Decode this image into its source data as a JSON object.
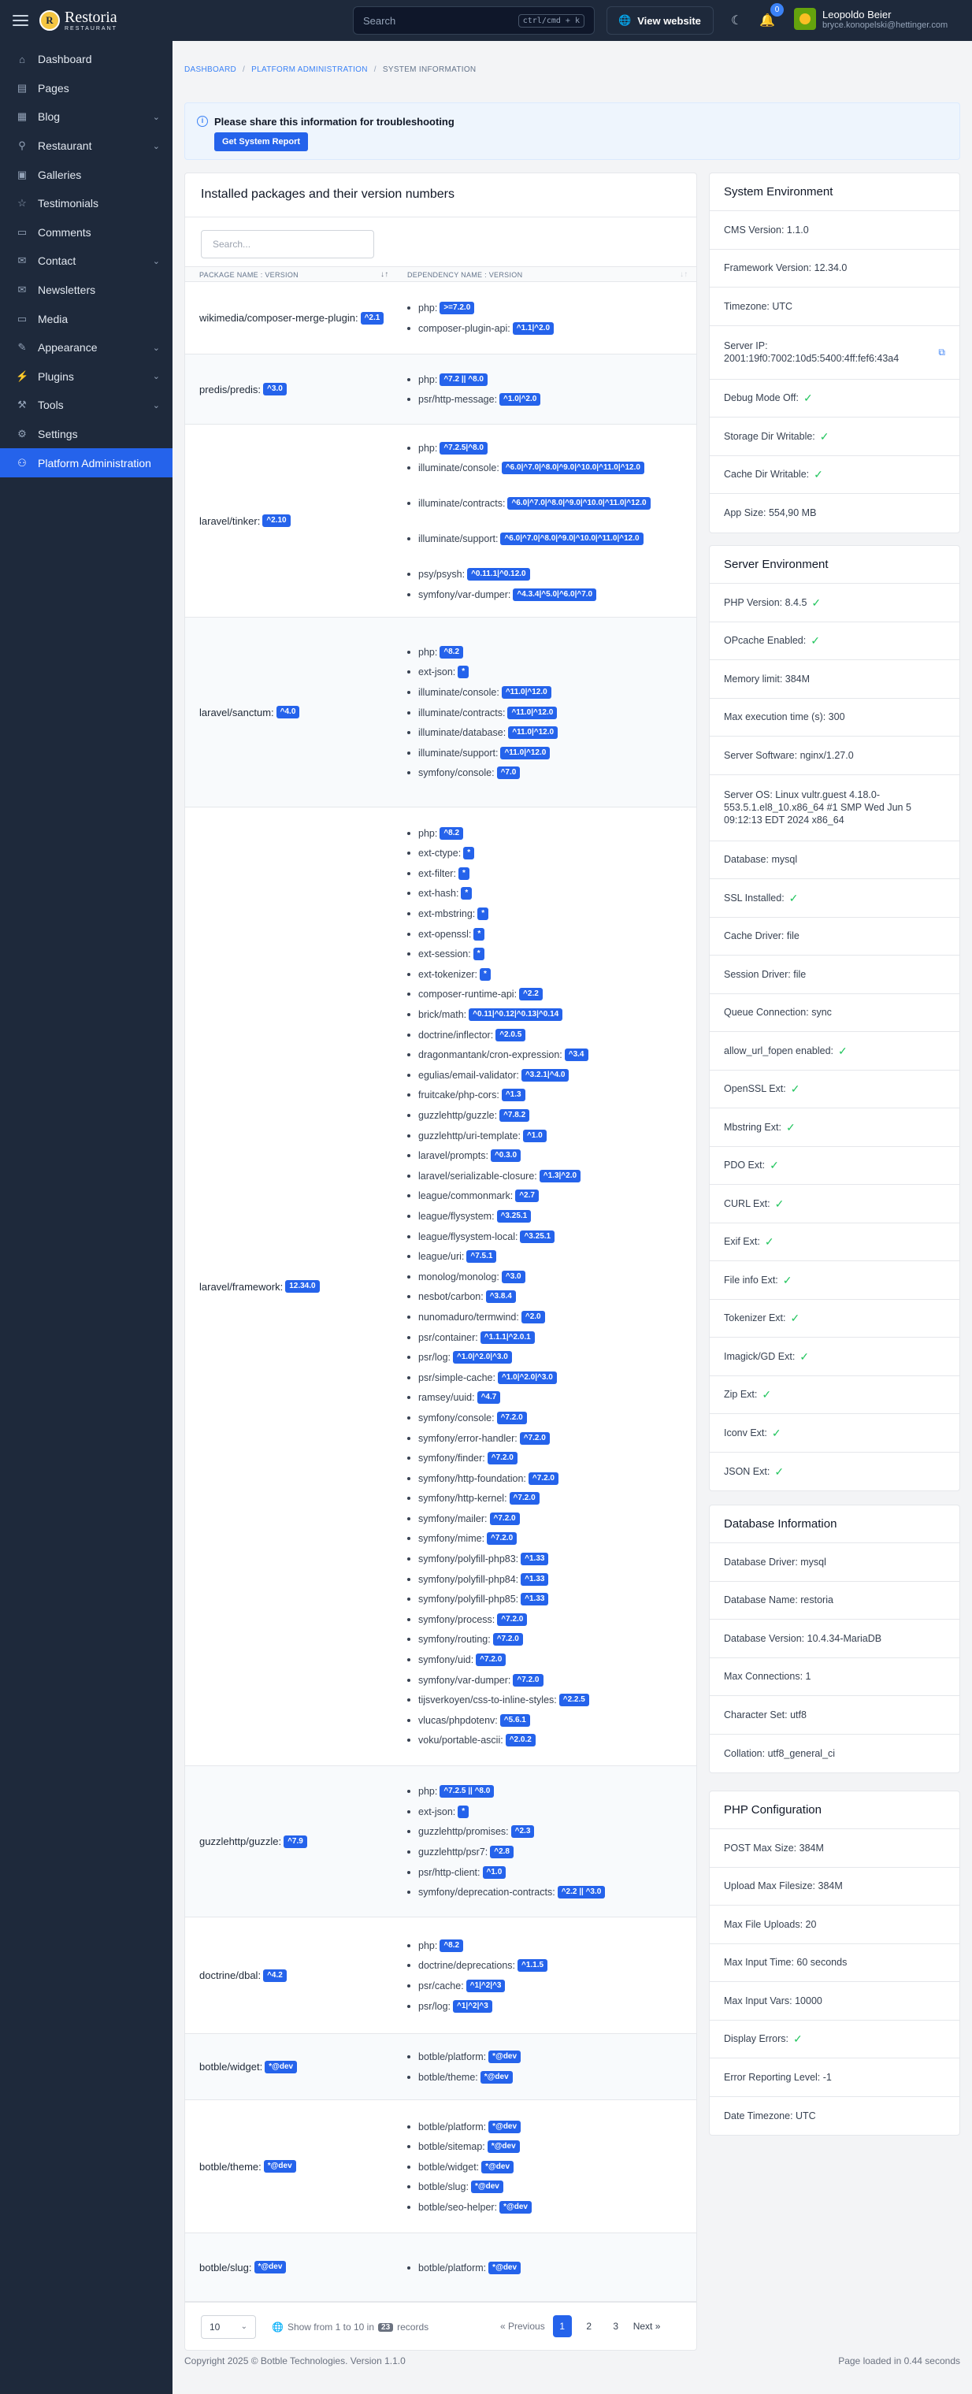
{
  "topbar": {
    "logo_name": "Restoria",
    "logo_sub": "RESTAURANT",
    "search_placeholder": "Search",
    "search_shortcut": "ctrl/cmd + k",
    "view_site": "View website",
    "notifications": "0",
    "user_name": "Leopoldo Beier",
    "user_email": "bryce.konopelski@hettinger.com"
  },
  "sidebar": {
    "items": [
      {
        "label": "Dashboard",
        "icon": "home-icon",
        "chevron": false
      },
      {
        "label": "Pages",
        "icon": "file-icon",
        "chevron": false
      },
      {
        "label": "Blog",
        "icon": "article-icon",
        "chevron": true
      },
      {
        "label": "Restaurant",
        "icon": "tools-kitchen-icon",
        "chevron": true
      },
      {
        "label": "Galleries",
        "icon": "photo-icon",
        "chevron": false
      },
      {
        "label": "Testimonials",
        "icon": "user-star-icon",
        "chevron": false
      },
      {
        "label": "Comments",
        "icon": "message-icon",
        "chevron": false
      },
      {
        "label": "Contact",
        "icon": "mail-icon",
        "chevron": true
      },
      {
        "label": "Newsletters",
        "icon": "mail-opened-icon",
        "chevron": false
      },
      {
        "label": "Media",
        "icon": "folder-icon",
        "chevron": false
      },
      {
        "label": "Appearance",
        "icon": "brush-icon",
        "chevron": true
      },
      {
        "label": "Plugins",
        "icon": "plug-icon",
        "chevron": true
      },
      {
        "label": "Tools",
        "icon": "tool-icon",
        "chevron": true
      },
      {
        "label": "Settings",
        "icon": "settings-icon",
        "chevron": false
      },
      {
        "label": "Platform Administration",
        "icon": "user-shield-icon",
        "chevron": false,
        "active": true
      }
    ]
  },
  "breadcrumb": {
    "items": [
      "DASHBOARD",
      "PLATFORM ADMINISTRATION"
    ],
    "current": "SYSTEM INFORMATION"
  },
  "alert": {
    "text": "Please share this information for troubleshooting",
    "button": "Get System Report"
  },
  "packages": {
    "title": "Installed packages and their version numbers",
    "search_placeholder": "Search...",
    "col1": "PACKAGE NAME : VERSION",
    "col2": "DEPENDENCY NAME : VERSION",
    "rows": [
      {
        "name": "wikimedia/composer-merge-plugin:",
        "version": "^2.1",
        "deps": [
          {
            "n": "php:",
            "v": ">=7.2.0"
          },
          {
            "n": "composer-plugin-api:",
            "v": "^1.1|^2.0"
          }
        ]
      },
      {
        "name": "predis/predis:",
        "version": "^3.0",
        "deps": [
          {
            "n": "php:",
            "v": "^7.2 || ^8.0"
          },
          {
            "n": "psr/http-message:",
            "v": "^1.0|^2.0"
          }
        ]
      },
      {
        "name": "laravel/tinker:",
        "version": "^2.10",
        "deps": [
          {
            "n": "php:",
            "v": "^7.2.5|^8.0"
          },
          {
            "n": "illuminate/console:",
            "v": "^6.0|^7.0|^8.0|^9.0|^10.0|^11.0|^12.0"
          },
          {
            "n": "illuminate/contracts:",
            "v": "^6.0|^7.0|^8.0|^9.0|^10.0|^11.0|^12.0"
          },
          {
            "n": "illuminate/support:",
            "v": "^6.0|^7.0|^8.0|^9.0|^10.0|^11.0|^12.0"
          },
          {
            "n": "psy/psysh:",
            "v": "^0.11.1|^0.12.0"
          },
          {
            "n": "symfony/var-dumper:",
            "v": "^4.3.4|^5.0|^6.0|^7.0"
          }
        ]
      },
      {
        "name": "laravel/sanctum:",
        "version": "^4.0",
        "deps": [
          {
            "n": "php:",
            "v": "^8.2"
          },
          {
            "n": "ext-json:",
            "v": "*"
          },
          {
            "n": "illuminate/console:",
            "v": "^11.0|^12.0"
          },
          {
            "n": "illuminate/contracts:",
            "v": "^11.0|^12.0"
          },
          {
            "n": "illuminate/database:",
            "v": "^11.0|^12.0"
          },
          {
            "n": "illuminate/support:",
            "v": "^11.0|^12.0"
          },
          {
            "n": "symfony/console:",
            "v": "^7.0"
          }
        ]
      },
      {
        "name": "laravel/framework:",
        "version": "12.34.0",
        "deps": [
          {
            "n": "php:",
            "v": "^8.2"
          },
          {
            "n": "ext-ctype:",
            "v": "*"
          },
          {
            "n": "ext-filter:",
            "v": "*"
          },
          {
            "n": "ext-hash:",
            "v": "*"
          },
          {
            "n": "ext-mbstring:",
            "v": "*"
          },
          {
            "n": "ext-openssl:",
            "v": "*"
          },
          {
            "n": "ext-session:",
            "v": "*"
          },
          {
            "n": "ext-tokenizer:",
            "v": "*"
          },
          {
            "n": "composer-runtime-api:",
            "v": "^2.2"
          },
          {
            "n": "brick/math:",
            "v": "^0.11|^0.12|^0.13|^0.14"
          },
          {
            "n": "doctrine/inflector:",
            "v": "^2.0.5"
          },
          {
            "n": "dragonmantank/cron-expression:",
            "v": "^3.4"
          },
          {
            "n": "egulias/email-validator:",
            "v": "^3.2.1|^4.0"
          },
          {
            "n": "fruitcake/php-cors:",
            "v": "^1.3"
          },
          {
            "n": "guzzlehttp/guzzle:",
            "v": "^7.8.2"
          },
          {
            "n": "guzzlehttp/uri-template:",
            "v": "^1.0"
          },
          {
            "n": "laravel/prompts:",
            "v": "^0.3.0"
          },
          {
            "n": "laravel/serializable-closure:",
            "v": "^1.3|^2.0"
          },
          {
            "n": "league/commonmark:",
            "v": "^2.7"
          },
          {
            "n": "league/flysystem:",
            "v": "^3.25.1"
          },
          {
            "n": "league/flysystem-local:",
            "v": "^3.25.1"
          },
          {
            "n": "league/uri:",
            "v": "^7.5.1"
          },
          {
            "n": "monolog/monolog:",
            "v": "^3.0"
          },
          {
            "n": "nesbot/carbon:",
            "v": "^3.8.4"
          },
          {
            "n": "nunomaduro/termwind:",
            "v": "^2.0"
          },
          {
            "n": "psr/container:",
            "v": "^1.1.1|^2.0.1"
          },
          {
            "n": "psr/log:",
            "v": "^1.0|^2.0|^3.0"
          },
          {
            "n": "psr/simple-cache:",
            "v": "^1.0|^2.0|^3.0"
          },
          {
            "n": "ramsey/uuid:",
            "v": "^4.7"
          },
          {
            "n": "symfony/console:",
            "v": "^7.2.0"
          },
          {
            "n": "symfony/error-handler:",
            "v": "^7.2.0"
          },
          {
            "n": "symfony/finder:",
            "v": "^7.2.0"
          },
          {
            "n": "symfony/http-foundation:",
            "v": "^7.2.0"
          },
          {
            "n": "symfony/http-kernel:",
            "v": "^7.2.0"
          },
          {
            "n": "symfony/mailer:",
            "v": "^7.2.0"
          },
          {
            "n": "symfony/mime:",
            "v": "^7.2.0"
          },
          {
            "n": "symfony/polyfill-php83:",
            "v": "^1.33"
          },
          {
            "n": "symfony/polyfill-php84:",
            "v": "^1.33"
          },
          {
            "n": "symfony/polyfill-php85:",
            "v": "^1.33"
          },
          {
            "n": "symfony/process:",
            "v": "^7.2.0"
          },
          {
            "n": "symfony/routing:",
            "v": "^7.2.0"
          },
          {
            "n": "symfony/uid:",
            "v": "^7.2.0"
          },
          {
            "n": "symfony/var-dumper:",
            "v": "^7.2.0"
          },
          {
            "n": "tijsverkoyen/css-to-inline-styles:",
            "v": "^2.2.5"
          },
          {
            "n": "vlucas/phpdotenv:",
            "v": "^5.6.1"
          },
          {
            "n": "voku/portable-ascii:",
            "v": "^2.0.2"
          }
        ]
      },
      {
        "name": "guzzlehttp/guzzle:",
        "version": "^7.9",
        "deps": [
          {
            "n": "php:",
            "v": "^7.2.5 || ^8.0"
          },
          {
            "n": "ext-json:",
            "v": "*"
          },
          {
            "n": "guzzlehttp/promises:",
            "v": "^2.3"
          },
          {
            "n": "guzzlehttp/psr7:",
            "v": "^2.8"
          },
          {
            "n": "psr/http-client:",
            "v": "^1.0"
          },
          {
            "n": "symfony/deprecation-contracts:",
            "v": "^2.2 || ^3.0"
          }
        ]
      },
      {
        "name": "doctrine/dbal:",
        "version": "^4.2",
        "deps": [
          {
            "n": "php:",
            "v": "^8.2"
          },
          {
            "n": "doctrine/deprecations:",
            "v": "^1.1.5"
          },
          {
            "n": "psr/cache:",
            "v": "^1|^2|^3"
          },
          {
            "n": "psr/log:",
            "v": "^1|^2|^3"
          }
        ]
      },
      {
        "name": "botble/widget:",
        "version": "*@dev",
        "deps": [
          {
            "n": "botble/platform:",
            "v": "*@dev"
          },
          {
            "n": "botble/theme:",
            "v": "*@dev"
          }
        ]
      },
      {
        "name": "botble/theme:",
        "version": "*@dev",
        "deps": [
          {
            "n": "botble/platform:",
            "v": "*@dev"
          },
          {
            "n": "botble/sitemap:",
            "v": "*@dev"
          },
          {
            "n": "botble/widget:",
            "v": "*@dev"
          },
          {
            "n": "botble/slug:",
            "v": "*@dev"
          },
          {
            "n": "botble/seo-helper:",
            "v": "*@dev"
          }
        ]
      },
      {
        "name": "botble/slug:",
        "version": "*@dev",
        "deps": [
          {
            "n": "botble/platform:",
            "v": "*@dev"
          }
        ]
      }
    ],
    "page_size": "10",
    "showing": "Show from 1 to 10 in",
    "total": "23",
    "records": "records",
    "prev": "« Previous",
    "pages": [
      "1",
      "2",
      "3"
    ],
    "next": "Next »"
  },
  "system_env": {
    "title": "System Environment",
    "rows": [
      {
        "t": "CMS Version: 1.1.0"
      },
      {
        "t": "Framework Version: 12.34.0"
      },
      {
        "t": "Timezone: UTC"
      },
      {
        "t": "Server IP: 2001:19f0:7002:10d5:5400:4ff:fef6:43a4",
        "copy": true
      },
      {
        "t": "Debug Mode Off:",
        "check": true
      },
      {
        "t": "Storage Dir Writable:",
        "check": true
      },
      {
        "t": "Cache Dir Writable:",
        "check": true
      },
      {
        "t": "App Size: 554,90 MB"
      }
    ]
  },
  "server_env": {
    "title": "Server Environment",
    "rows": [
      {
        "t": "PHP Version: 8.4.5",
        "check": true
      },
      {
        "t": "OPcache Enabled:",
        "check": true
      },
      {
        "t": "Memory limit: 384M"
      },
      {
        "t": "Max execution time (s): 300"
      },
      {
        "t": "Server Software: nginx/1.27.0"
      },
      {
        "t": "Server OS: Linux vultr.guest 4.18.0-553.5.1.el8_10.x86_64 #1 SMP Wed Jun 5 09:12:13 EDT 2024 x86_64"
      },
      {
        "t": "Database: mysql"
      },
      {
        "t": "SSL Installed:",
        "check": true
      },
      {
        "t": "Cache Driver: file"
      },
      {
        "t": "Session Driver: file"
      },
      {
        "t": "Queue Connection: sync"
      },
      {
        "t": "allow_url_fopen enabled:",
        "check": true
      },
      {
        "t": "OpenSSL Ext:",
        "check": true
      },
      {
        "t": "Mbstring Ext:",
        "check": true
      },
      {
        "t": "PDO Ext:",
        "check": true
      },
      {
        "t": "CURL Ext:",
        "check": true
      },
      {
        "t": "Exif Ext:",
        "check": true
      },
      {
        "t": "File info Ext:",
        "check": true
      },
      {
        "t": "Tokenizer Ext:",
        "check": true
      },
      {
        "t": "Imagick/GD Ext:",
        "check": true
      },
      {
        "t": "Zip Ext:",
        "check": true
      },
      {
        "t": "Iconv Ext:",
        "check": true
      },
      {
        "t": "JSON Ext:",
        "check": true
      }
    ]
  },
  "database": {
    "title": "Database Information",
    "rows": [
      {
        "t": "Database Driver: mysql"
      },
      {
        "t": "Database Name: restoria"
      },
      {
        "t": "Database Version: 10.4.34-MariaDB"
      },
      {
        "t": "Max Connections: 1"
      },
      {
        "t": "Character Set: utf8"
      },
      {
        "t": "Collation: utf8_general_ci"
      }
    ]
  },
  "php_config": {
    "title": "PHP Configuration",
    "rows": [
      {
        "t": "POST Max Size: 384M"
      },
      {
        "t": "Upload Max Filesize: 384M"
      },
      {
        "t": "Max File Uploads: 20"
      },
      {
        "t": "Max Input Time: 60 seconds"
      },
      {
        "t": "Max Input Vars: 10000"
      },
      {
        "t": "Display Errors:",
        "check": true
      },
      {
        "t": "Error Reporting Level: -1"
      },
      {
        "t": "Date Timezone: UTC"
      }
    ]
  },
  "footer": {
    "copyright": "Copyright 2025 © Botble Technologies. Version 1.1.0",
    "loaded": "Page loaded in 0.44 seconds"
  }
}
